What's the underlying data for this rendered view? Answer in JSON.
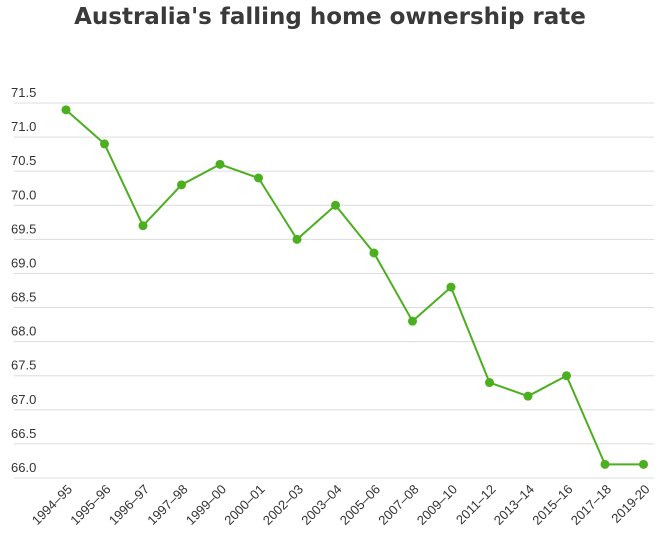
{
  "chart_data": {
    "type": "line",
    "title": "Australia's falling home ownership rate",
    "xlabel": "",
    "ylabel": "",
    "categories": [
      "1994–95",
      "1995–96",
      "1996–97",
      "1997–98",
      "1999–00",
      "2000–01",
      "2002–03",
      "2003–04",
      "2005–06",
      "2007–08",
      "2009–10",
      "2011–12",
      "2013–14",
      "2015–16",
      "2017–18",
      "2019-20"
    ],
    "series": [
      {
        "values": [
          71.4,
          70.9,
          69.7,
          70.3,
          70.6,
          70.4,
          69.5,
          70.0,
          69.3,
          68.3,
          68.8,
          67.4,
          67.2,
          67.5,
          66.2,
          66.2
        ]
      }
    ],
    "ylim": [
      66.0,
      71.5
    ],
    "yticks": [
      "71.5",
      "71.0",
      "70.5",
      "70.0",
      "69.5",
      "69.0",
      "68.5",
      "68.0",
      "67.5",
      "67.0",
      "66.5",
      "66.0"
    ],
    "grid": true,
    "legend": "none",
    "colors": {
      "line": "#4caf1f",
      "grid": "#dcdcdc",
      "text": "#333333",
      "title": "#3a3a3a"
    }
  }
}
